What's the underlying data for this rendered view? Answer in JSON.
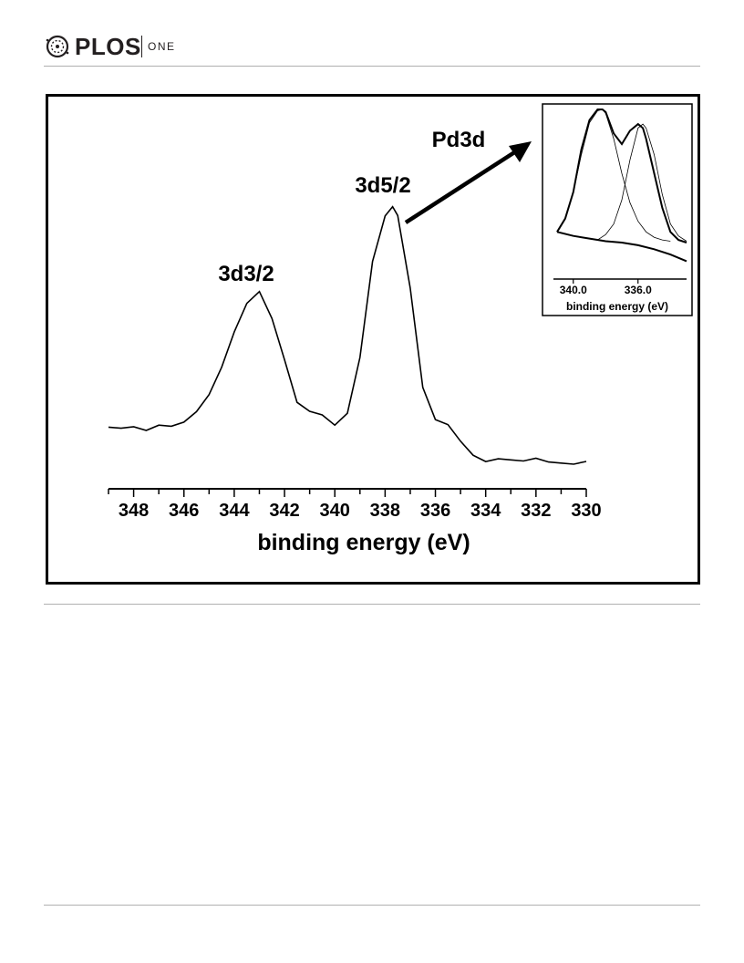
{
  "header": {
    "logo": "PLOS",
    "journal": "ONE"
  },
  "chart_data": {
    "type": "line",
    "title": "",
    "xlabel": "binding energy (eV)",
    "ylabel": "",
    "xlim": [
      349,
      330
    ],
    "x_reversed": true,
    "xticks": [
      348,
      346,
      344,
      342,
      340,
      338,
      336,
      334,
      332,
      330
    ],
    "grid": false,
    "series": [
      {
        "name": "",
        "x": [
          349.0,
          348.5,
          348.0,
          347.5,
          347.0,
          346.5,
          346.0,
          345.5,
          345.0,
          344.5,
          344.0,
          343.5,
          343.0,
          342.5,
          342.0,
          341.5,
          341.0,
          340.5,
          340.0,
          339.5,
          339.0,
          338.5,
          338.0,
          337.7,
          337.5,
          337.0,
          336.5,
          336.0,
          335.5,
          335.0,
          334.5,
          334.0,
          333.5,
          333.0,
          332.5,
          332.0,
          331.5,
          331.0,
          330.5,
          330.0
        ],
        "y": [
          0.14,
          0.14,
          0.15,
          0.14,
          0.15,
          0.15,
          0.17,
          0.2,
          0.27,
          0.38,
          0.52,
          0.62,
          0.67,
          0.57,
          0.4,
          0.24,
          0.21,
          0.2,
          0.15,
          0.2,
          0.42,
          0.78,
          0.96,
          1.0,
          0.97,
          0.68,
          0.3,
          0.18,
          0.15,
          0.09,
          0.04,
          0.02,
          0.02,
          0.02,
          0.02,
          0.02,
          0.01,
          0.01,
          0.01,
          0.01
        ]
      }
    ],
    "annotations": [
      {
        "text": "3d3/2",
        "x": 343.0
      },
      {
        "text": "3d5/2",
        "x": 337.7
      },
      {
        "text": "Pd3d"
      }
    ],
    "inset": {
      "type": "line",
      "xlabel": "binding energy (eV)",
      "xtick_labels": [
        "340.0",
        "336.0"
      ],
      "xticks": [
        340.0,
        336.0
      ],
      "xlim": [
        341.0,
        333.0
      ],
      "x_reversed": true,
      "series": [
        {
          "name": "",
          "x": [
            341.0,
            340.5,
            340.0,
            339.5,
            339.0,
            338.5,
            338.2,
            338.0,
            337.5,
            337.0,
            336.5,
            336.0,
            335.7,
            335.5,
            335.0,
            334.5,
            334.0,
            333.5,
            333.0
          ],
          "y": [
            0.08,
            0.18,
            0.38,
            0.7,
            0.92,
            1.0,
            1.0,
            0.98,
            0.82,
            0.74,
            0.84,
            0.89,
            0.86,
            0.78,
            0.52,
            0.26,
            0.08,
            0.02,
            0.0
          ]
        },
        {
          "name": "",
          "x": [
            341.0,
            340.5,
            340.0,
            339.5,
            339.0,
            338.5,
            338.2,
            338.0,
            337.5,
            337.0,
            336.5,
            336.0,
            335.5,
            335.0,
            334.5,
            334.0
          ],
          "y": [
            0.08,
            0.18,
            0.38,
            0.66,
            0.9,
            0.99,
            1.0,
            0.97,
            0.78,
            0.52,
            0.3,
            0.16,
            0.08,
            0.04,
            0.02,
            0.01
          ]
        },
        {
          "name": "",
          "x": [
            338.5,
            338.0,
            337.5,
            337.0,
            336.5,
            336.0,
            335.7,
            335.5,
            335.0,
            334.5,
            334.0,
            333.5,
            333.0
          ],
          "y": [
            0.02,
            0.06,
            0.14,
            0.32,
            0.62,
            0.86,
            0.89,
            0.86,
            0.66,
            0.36,
            0.14,
            0.05,
            0.01
          ]
        },
        {
          "name": "",
          "x": [
            341.0,
            340.0,
            339.0,
            338.0,
            337.0,
            336.0,
            335.0,
            334.0,
            333.0
          ],
          "y": [
            0.08,
            0.05,
            0.03,
            0.01,
            0.0,
            -0.02,
            -0.05,
            -0.09,
            -0.14
          ]
        }
      ]
    }
  }
}
